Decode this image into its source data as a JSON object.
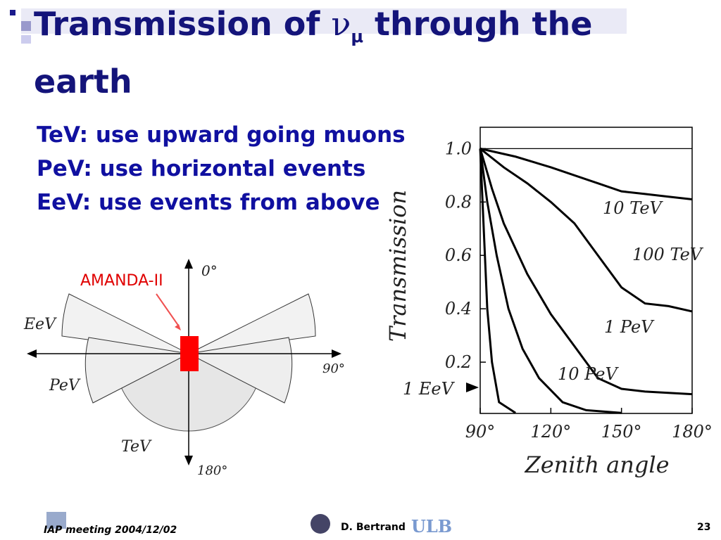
{
  "title": {
    "prefix": "Transmission of ",
    "nu": "ν",
    "sub": "μ",
    "suffix": " through the",
    "line2": "earth"
  },
  "bullets": [
    "TeV: use upward going muons",
    "PeV: use horizontal events",
    "EeV: use events from above"
  ],
  "diagram": {
    "detector": "AMANDA-II",
    "top": "0°",
    "right": "90°",
    "bottom": "180°",
    "eev": "EeV",
    "pev": "PeV",
    "tev": "TeV"
  },
  "chart_data": {
    "type": "line",
    "ylabel": "Transmission",
    "xlabel": "Zenith angle",
    "xlim": [
      90,
      180
    ],
    "ylim": [
      0,
      1.08
    ],
    "xticks": [
      {
        "value": 90,
        "label": "90°"
      },
      {
        "value": 120,
        "label": "120°"
      },
      {
        "value": 150,
        "label": "150°"
      },
      {
        "value": 180,
        "label": "180°"
      }
    ],
    "yticks": [
      0.2,
      0.4,
      0.6,
      0.8,
      {
        "value": 1,
        "label": "1.0"
      }
    ],
    "color": "#000000",
    "series": [
      {
        "name": "10 TeV",
        "x": [
          90,
          105,
          120,
          140,
          150,
          160,
          170,
          180
        ],
        "values": [
          1,
          0.97,
          0.93,
          0.87,
          0.84,
          0.83,
          0.82,
          0.81
        ]
      },
      {
        "name": "100 TeV",
        "x": [
          90,
          100,
          110,
          120,
          130,
          140,
          150,
          160,
          170,
          180
        ],
        "values": [
          1,
          0.93,
          0.87,
          0.8,
          0.72,
          0.6,
          0.48,
          0.42,
          0.41,
          0.39
        ]
      },
      {
        "name": "1 PeV",
        "x": [
          90,
          95,
          100,
          110,
          120,
          130,
          140,
          150,
          160,
          170,
          180
        ],
        "values": [
          1,
          0.85,
          0.72,
          0.53,
          0.38,
          0.26,
          0.14,
          0.1,
          0.09,
          0.085,
          0.08
        ]
      },
      {
        "name": "10 PeV",
        "x": [
          90,
          93,
          97,
          102,
          108,
          115,
          125,
          135,
          150
        ],
        "values": [
          1,
          0.8,
          0.6,
          0.4,
          0.25,
          0.14,
          0.05,
          0.02,
          0.01
        ]
      },
      {
        "name": "1 EeV",
        "x": [
          90,
          91,
          92,
          93,
          95,
          98,
          105
        ],
        "values": [
          1,
          0.8,
          0.6,
          0.4,
          0.2,
          0.05,
          0.01
        ]
      }
    ]
  },
  "footer": {
    "meeting": "IAP meeting 2004/12/02",
    "author": "D. Bertrand",
    "logo": "ULB",
    "page": "23"
  }
}
